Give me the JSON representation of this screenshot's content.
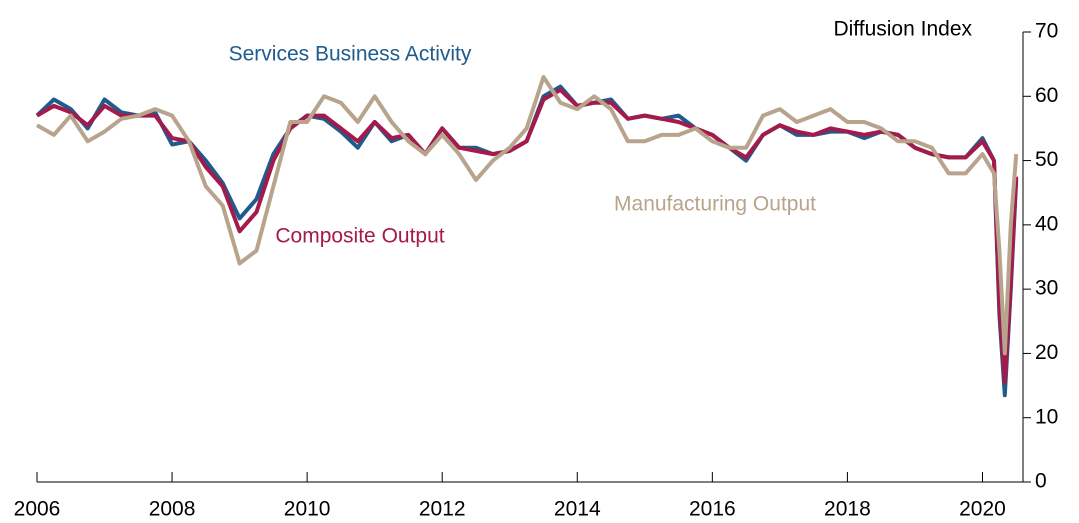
{
  "chart_data": {
    "type": "line",
    "y_axis_label": "Diffusion Index",
    "x": [
      2006.0,
      2006.25,
      2006.5,
      2006.75,
      2007.0,
      2007.25,
      2007.5,
      2007.75,
      2008.0,
      2008.25,
      2008.5,
      2008.75,
      2009.0,
      2009.25,
      2009.5,
      2009.75,
      2010.0,
      2010.25,
      2010.5,
      2010.75,
      2011.0,
      2011.25,
      2011.5,
      2011.75,
      2012.0,
      2012.25,
      2012.5,
      2012.75,
      2013.0,
      2013.25,
      2013.5,
      2013.75,
      2014.0,
      2014.25,
      2014.5,
      2014.75,
      2015.0,
      2015.25,
      2015.5,
      2015.75,
      2016.0,
      2016.25,
      2016.5,
      2016.75,
      2017.0,
      2017.25,
      2017.5,
      2017.75,
      2018.0,
      2018.25,
      2018.5,
      2018.75,
      2019.0,
      2019.25,
      2019.5,
      2019.75,
      2020.0,
      2020.17,
      2020.25,
      2020.33,
      2020.42,
      2020.5
    ],
    "series": [
      {
        "name": "Services Business Activity",
        "color": "#1f5b8c",
        "values": [
          57,
          59.5,
          58,
          55,
          59.5,
          57.5,
          57,
          57.5,
          52.5,
          53,
          50,
          46.5,
          41,
          44,
          51,
          55,
          57,
          56.5,
          54.5,
          52,
          56,
          53,
          54,
          51,
          55,
          52,
          52,
          51,
          51.5,
          53,
          60,
          61.5,
          58.5,
          59,
          59.5,
          56.5,
          57,
          56.5,
          57,
          55,
          54,
          52,
          50,
          54,
          55.5,
          54,
          54,
          54.5,
          54.5,
          53.5,
          54.5,
          54,
          52,
          51,
          50.5,
          50.5,
          53.5,
          50,
          26,
          13.5,
          30,
          47
        ]
      },
      {
        "name": "Composite Output",
        "color": "#a31a4b",
        "values": [
          57,
          58.5,
          57.5,
          55.5,
          58.5,
          57,
          57,
          57,
          53.5,
          53,
          49,
          46,
          39,
          42,
          50,
          55,
          57,
          57,
          55,
          53,
          56,
          53.5,
          54,
          51,
          55,
          52,
          51.5,
          51,
          51.5,
          53,
          59.5,
          61,
          58.5,
          59,
          59,
          56.5,
          57,
          56.5,
          56,
          55,
          54,
          52,
          50.5,
          54,
          55.5,
          54.5,
          54,
          55,
          54.5,
          54,
          54.5,
          54,
          52,
          51,
          50.5,
          50.5,
          53,
          50,
          27.5,
          15.5,
          31,
          47.5
        ]
      },
      {
        "name": "Manufacturing Output",
        "color": "#b8a48c",
        "values": [
          55.5,
          54,
          57,
          53,
          54.5,
          56.5,
          57,
          58,
          57,
          53,
          46,
          43,
          34,
          36,
          46,
          56,
          56,
          60,
          59,
          56,
          60,
          56,
          53,
          51,
          54,
          51,
          47,
          50,
          52,
          55,
          63,
          59,
          58,
          60,
          58,
          53,
          53,
          54,
          54,
          55,
          53,
          52,
          52,
          57,
          58,
          56,
          57,
          58,
          56,
          56,
          55,
          53,
          53,
          52,
          48,
          48,
          51,
          48,
          36,
          20,
          40,
          51
        ]
      }
    ],
    "xlim": [
      2006,
      2020.6
    ],
    "xticks": [
      2006,
      2008,
      2010,
      2012,
      2014,
      2016,
      2018,
      2020
    ],
    "ylim": [
      0,
      70
    ],
    "yticks": [
      0,
      10,
      20,
      30,
      40,
      50,
      60,
      70
    ],
    "grid": false
  }
}
